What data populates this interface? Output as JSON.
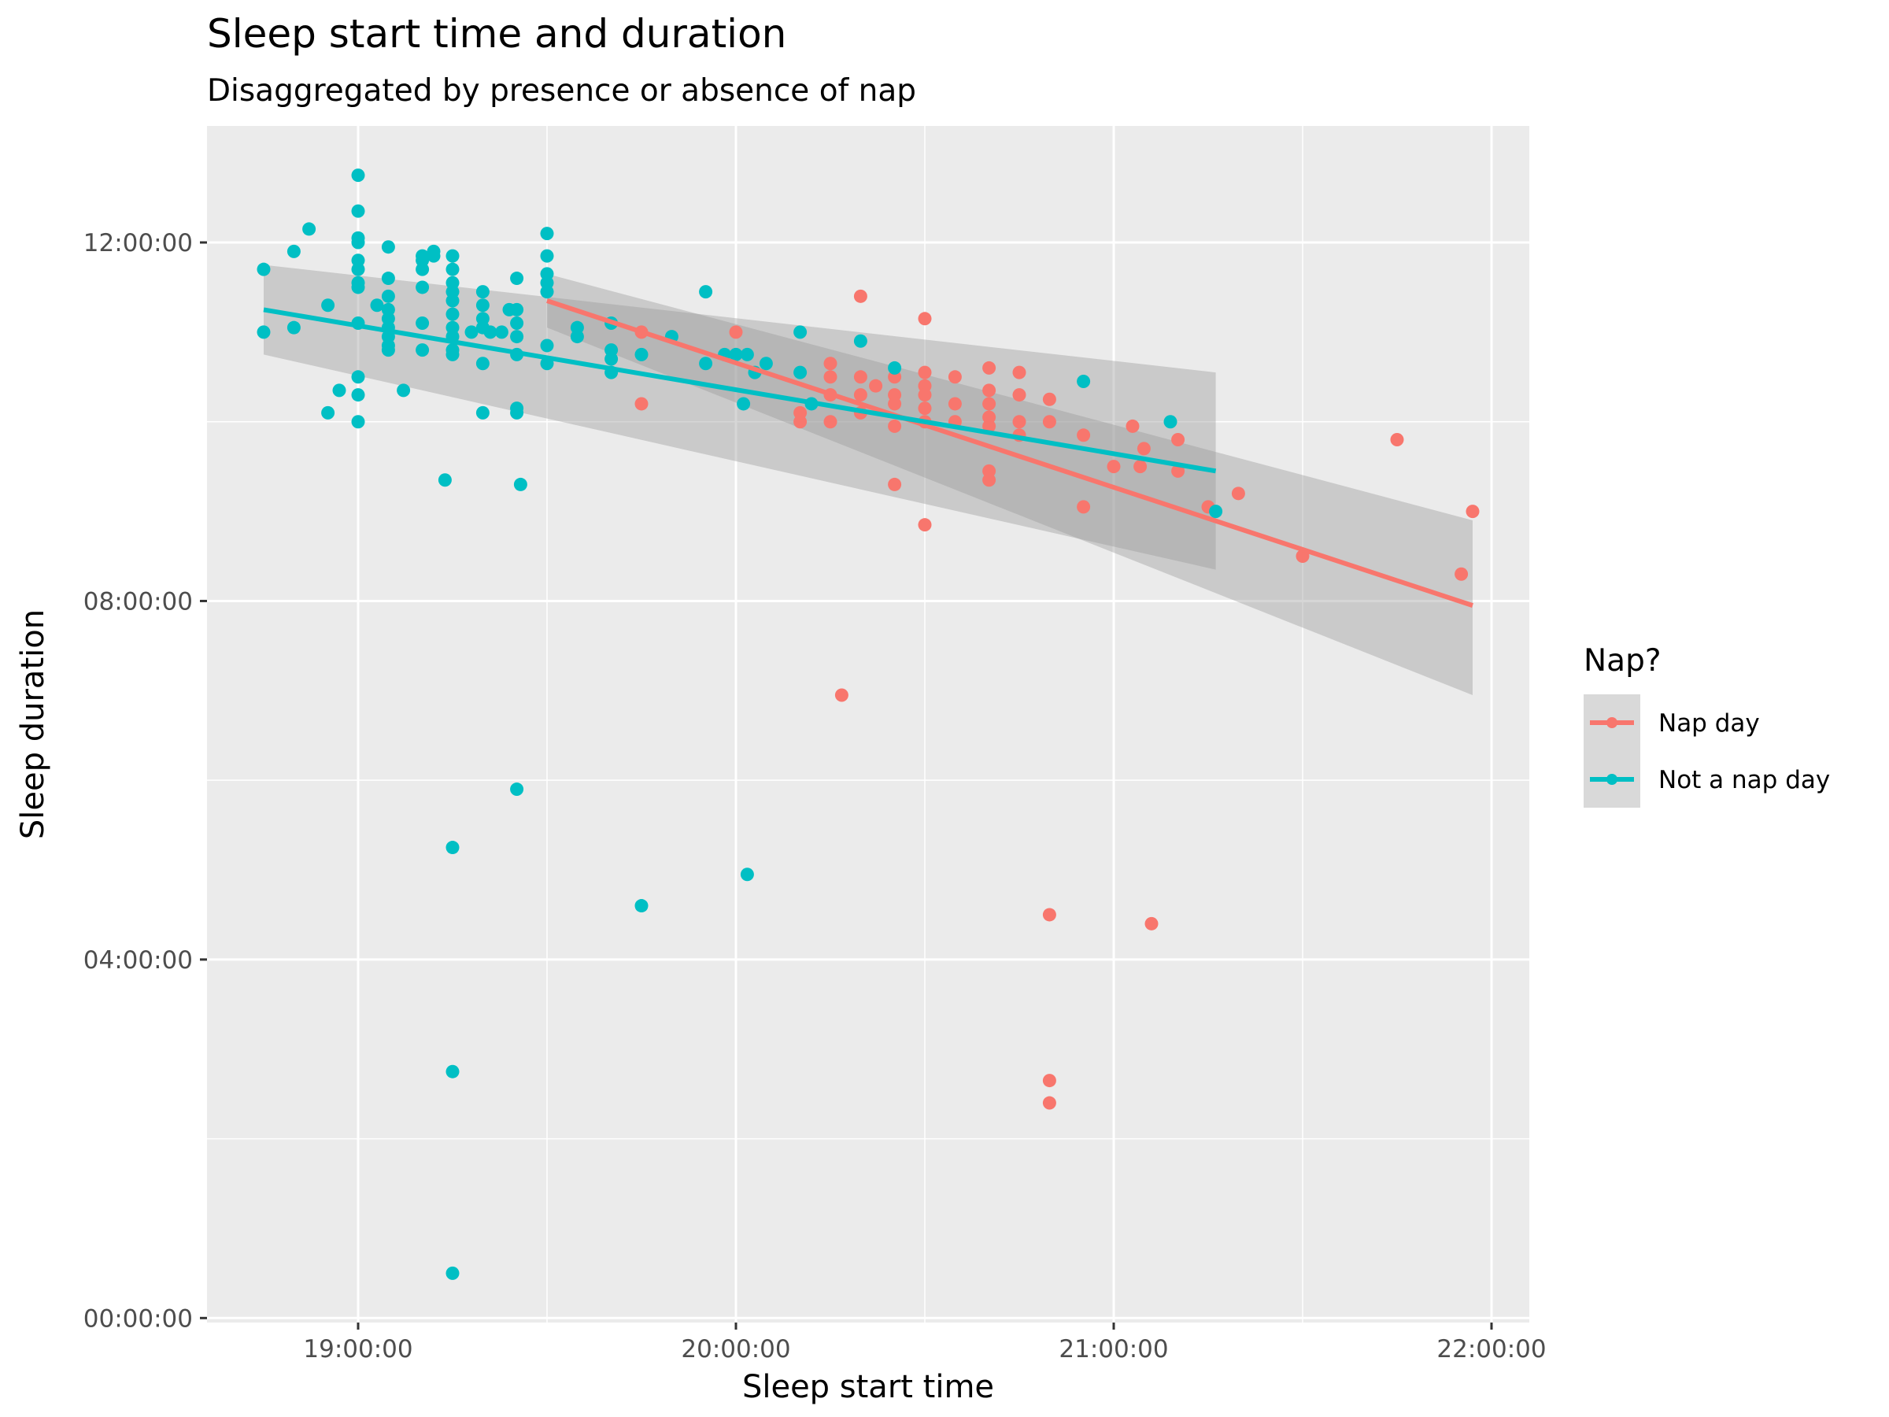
{
  "chart_data": {
    "type": "scatter",
    "title": "Sleep start time and duration",
    "subtitle": "Disaggregated by presence or absence of nap",
    "xlabel": "Sleep start time",
    "ylabel": "Sleep duration",
    "x_unit": "hours (clock time)",
    "y_unit": "hours",
    "xlim": [
      18.6,
      22.1
    ],
    "ylim": [
      -0.05,
      13.3
    ],
    "x_ticks": [
      {
        "value": 19,
        "label": "19:00:00"
      },
      {
        "value": 20,
        "label": "20:00:00"
      },
      {
        "value": 21,
        "label": "21:00:00"
      },
      {
        "value": 22,
        "label": "22:00:00"
      }
    ],
    "y_ticks": [
      {
        "value": 0,
        "label": "00:00:00"
      },
      {
        "value": 4,
        "label": "04:00:00"
      },
      {
        "value": 8,
        "label": "08:00:00"
      },
      {
        "value": 12,
        "label": "12:00:00"
      }
    ],
    "grid": true,
    "legend": {
      "title": "Nap?",
      "position": "right"
    },
    "series": [
      {
        "name": "Nap day",
        "color": "#F8766D",
        "trend": {
          "x": [
            19.5,
            21.95
          ],
          "y": [
            11.35,
            7.95
          ]
        },
        "ribbon": {
          "x": [
            19.5,
            21.95
          ],
          "lower": [
            11.05,
            6.95
          ],
          "upper": [
            11.65,
            8.9
          ]
        },
        "points": [
          [
            19.75,
            11.0
          ],
          [
            19.75,
            10.2
          ],
          [
            20.0,
            11.0
          ],
          [
            20.17,
            10.0
          ],
          [
            20.17,
            10.1
          ],
          [
            20.25,
            10.65
          ],
          [
            20.25,
            10.5
          ],
          [
            20.25,
            10.3
          ],
          [
            20.25,
            10.0
          ],
          [
            20.28,
            6.95
          ],
          [
            20.33,
            11.4
          ],
          [
            20.33,
            10.5
          ],
          [
            20.33,
            10.3
          ],
          [
            20.33,
            10.1
          ],
          [
            20.37,
            10.4
          ],
          [
            20.42,
            10.5
          ],
          [
            20.42,
            10.3
          ],
          [
            20.42,
            10.2
          ],
          [
            20.42,
            9.95
          ],
          [
            20.42,
            9.3
          ],
          [
            20.5,
            11.15
          ],
          [
            20.5,
            10.55
          ],
          [
            20.5,
            10.4
          ],
          [
            20.5,
            10.3
          ],
          [
            20.5,
            10.15
          ],
          [
            20.5,
            10.0
          ],
          [
            20.5,
            8.85
          ],
          [
            20.58,
            10.5
          ],
          [
            20.58,
            10.2
          ],
          [
            20.58,
            10.0
          ],
          [
            20.67,
            10.6
          ],
          [
            20.67,
            10.35
          ],
          [
            20.67,
            10.2
          ],
          [
            20.67,
            10.05
          ],
          [
            20.67,
            9.95
          ],
          [
            20.67,
            9.45
          ],
          [
            20.67,
            9.35
          ],
          [
            20.75,
            10.55
          ],
          [
            20.75,
            10.3
          ],
          [
            20.75,
            10.0
          ],
          [
            20.75,
            9.85
          ],
          [
            20.83,
            10.25
          ],
          [
            20.83,
            10.0
          ],
          [
            20.83,
            4.5
          ],
          [
            20.83,
            2.65
          ],
          [
            20.83,
            2.4
          ],
          [
            20.92,
            9.85
          ],
          [
            20.92,
            9.05
          ],
          [
            21.0,
            9.5
          ],
          [
            21.05,
            9.95
          ],
          [
            21.07,
            9.5
          ],
          [
            21.08,
            9.7
          ],
          [
            21.1,
            4.4
          ],
          [
            21.17,
            9.8
          ],
          [
            21.17,
            9.45
          ],
          [
            21.25,
            9.05
          ],
          [
            21.33,
            9.2
          ],
          [
            21.5,
            8.5
          ],
          [
            21.75,
            9.8
          ],
          [
            21.92,
            8.3
          ],
          [
            21.95,
            9.0
          ]
        ]
      },
      {
        "name": "Not a nap day",
        "color": "#00BFC4",
        "trend": {
          "x": [
            18.75,
            21.27
          ],
          "y": [
            11.25,
            9.45
          ]
        },
        "ribbon": {
          "x": [
            18.75,
            21.27
          ],
          "lower": [
            10.75,
            8.35
          ],
          "upper": [
            11.75,
            10.55
          ]
        },
        "points": [
          [
            18.75,
            11.7
          ],
          [
            18.75,
            11.0
          ],
          [
            18.83,
            11.9
          ],
          [
            18.83,
            11.05
          ],
          [
            18.87,
            12.15
          ],
          [
            18.92,
            11.3
          ],
          [
            18.92,
            10.1
          ],
          [
            18.95,
            10.35
          ],
          [
            19.0,
            12.75
          ],
          [
            19.0,
            12.35
          ],
          [
            19.0,
            12.05
          ],
          [
            19.0,
            12.0
          ],
          [
            19.0,
            11.8
          ],
          [
            19.0,
            11.7
          ],
          [
            19.0,
            11.55
          ],
          [
            19.0,
            11.5
          ],
          [
            19.0,
            11.1
          ],
          [
            19.0,
            10.5
          ],
          [
            19.0,
            10.3
          ],
          [
            19.0,
            10.0
          ],
          [
            19.05,
            11.3
          ],
          [
            19.08,
            11.95
          ],
          [
            19.08,
            11.6
          ],
          [
            19.08,
            11.4
          ],
          [
            19.08,
            11.25
          ],
          [
            19.08,
            11.15
          ],
          [
            19.08,
            11.05
          ],
          [
            19.08,
            10.95
          ],
          [
            19.08,
            10.85
          ],
          [
            19.08,
            10.8
          ],
          [
            19.12,
            10.35
          ],
          [
            19.17,
            11.85
          ],
          [
            19.17,
            11.8
          ],
          [
            19.17,
            11.7
          ],
          [
            19.17,
            11.5
          ],
          [
            19.17,
            11.1
          ],
          [
            19.17,
            10.8
          ],
          [
            19.2,
            11.9
          ],
          [
            19.2,
            11.85
          ],
          [
            19.23,
            9.35
          ],
          [
            19.25,
            11.85
          ],
          [
            19.25,
            11.7
          ],
          [
            19.25,
            11.55
          ],
          [
            19.25,
            11.45
          ],
          [
            19.25,
            11.35
          ],
          [
            19.25,
            11.2
          ],
          [
            19.25,
            11.05
          ],
          [
            19.25,
            10.95
          ],
          [
            19.25,
            10.8
          ],
          [
            19.25,
            10.75
          ],
          [
            19.25,
            5.25
          ],
          [
            19.25,
            2.75
          ],
          [
            19.25,
            0.5
          ],
          [
            19.3,
            11.0
          ],
          [
            19.33,
            11.45
          ],
          [
            19.33,
            11.3
          ],
          [
            19.33,
            11.15
          ],
          [
            19.33,
            11.05
          ],
          [
            19.33,
            10.65
          ],
          [
            19.33,
            10.1
          ],
          [
            19.35,
            11.0
          ],
          [
            19.38,
            11.0
          ],
          [
            19.4,
            11.25
          ],
          [
            19.42,
            11.6
          ],
          [
            19.42,
            11.25
          ],
          [
            19.42,
            11.1
          ],
          [
            19.42,
            10.95
          ],
          [
            19.42,
            10.75
          ],
          [
            19.42,
            10.15
          ],
          [
            19.42,
            10.1
          ],
          [
            19.42,
            5.9
          ],
          [
            19.43,
            9.3
          ],
          [
            19.5,
            12.1
          ],
          [
            19.5,
            11.85
          ],
          [
            19.5,
            11.65
          ],
          [
            19.5,
            11.55
          ],
          [
            19.5,
            11.45
          ],
          [
            19.5,
            10.85
          ],
          [
            19.5,
            10.65
          ],
          [
            19.58,
            11.05
          ],
          [
            19.58,
            10.95
          ],
          [
            19.67,
            11.1
          ],
          [
            19.67,
            10.8
          ],
          [
            19.67,
            10.7
          ],
          [
            19.67,
            10.55
          ],
          [
            19.75,
            10.75
          ],
          [
            19.75,
            4.6
          ],
          [
            19.83,
            10.95
          ],
          [
            19.92,
            11.45
          ],
          [
            19.92,
            10.65
          ],
          [
            19.97,
            10.75
          ],
          [
            20.0,
            10.75
          ],
          [
            20.02,
            10.2
          ],
          [
            20.03,
            10.75
          ],
          [
            20.03,
            4.95
          ],
          [
            20.05,
            10.55
          ],
          [
            20.08,
            10.65
          ],
          [
            20.17,
            11.0
          ],
          [
            20.17,
            10.55
          ],
          [
            20.2,
            10.2
          ],
          [
            20.33,
            10.9
          ],
          [
            20.42,
            10.6
          ],
          [
            20.92,
            10.45
          ],
          [
            21.15,
            10.0
          ],
          [
            21.27,
            9.0
          ]
        ]
      }
    ]
  }
}
